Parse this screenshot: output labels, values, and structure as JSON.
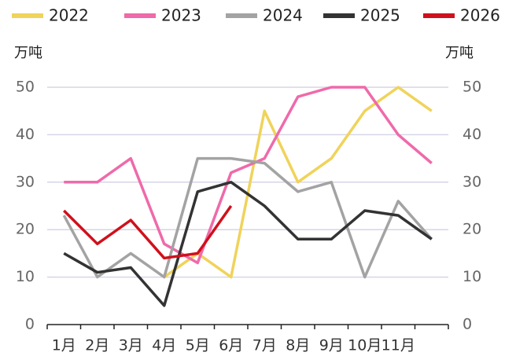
{
  "chart_data": {
    "type": "line",
    "y_label": "万吨",
    "y2_label": "万吨",
    "categories": [
      "1月",
      "2月",
      "3月",
      "4月",
      "5月",
      "6月",
      "7月",
      "8月",
      "9月",
      "10月",
      "11月",
      null
    ],
    "series": [
      {
        "name": "2022",
        "color": "#f0d35a",
        "values": [
          null,
          null,
          null,
          10,
          15,
          10,
          45,
          30,
          35,
          45,
          50,
          45
        ]
      },
      {
        "name": "2023",
        "color": "#ef6aaa",
        "values": [
          30,
          30,
          35,
          17,
          13,
          32,
          35,
          48,
          50,
          50,
          40,
          34
        ]
      },
      {
        "name": "2024",
        "color": "#a3a3a3",
        "values": [
          23,
          10,
          15,
          10,
          35,
          35,
          34,
          28,
          30,
          10,
          26,
          18
        ]
      },
      {
        "name": "2025",
        "color": "#333333",
        "values": [
          15,
          11,
          12,
          4,
          28,
          30,
          25,
          18,
          18,
          24,
          23,
          18
        ]
      },
      {
        "name": "2026",
        "color": "#d0101c",
        "values": [
          24,
          17,
          22,
          14,
          15,
          25,
          null,
          null,
          null,
          null,
          null,
          null
        ]
      }
    ],
    "ylim": [
      0,
      50
    ],
    "yticks": [
      0,
      10,
      20,
      30,
      40,
      50
    ],
    "y2lim": [
      0,
      50
    ],
    "y2ticks": [
      0,
      10,
      20,
      30,
      40,
      50
    ],
    "grid": true,
    "legend": "top"
  }
}
